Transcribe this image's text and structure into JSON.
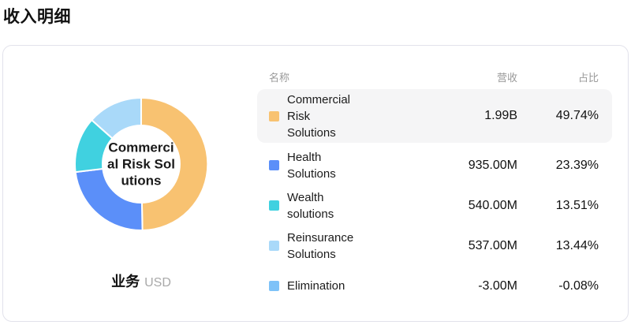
{
  "page_title": "收入明细",
  "chart_data": {
    "type": "pie",
    "subtype": "donut",
    "title": "收入明细",
    "dimension_label": "业务",
    "unit": "USD",
    "center_label": "Commerci\nal Risk Sol\nutions",
    "center_label_full": "Commercial Risk Solutions",
    "inner_radius_px": 49,
    "outer_radius_px": 84,
    "start_angle_deg": 0,
    "direction": "clockwise",
    "series": [
      {
        "name": "Commercial Risk Solutions",
        "value": 1990000000,
        "value_label": "1.99B",
        "percent": 49.74,
        "color": "#F8C271"
      },
      {
        "name": "Health Solutions",
        "value": 935000000,
        "value_label": "935.00M",
        "percent": 23.39,
        "color": "#5B8FF9"
      },
      {
        "name": "Wealth solutions",
        "value": 540000000,
        "value_label": "540.00M",
        "percent": 13.51,
        "color": "#40D1E0"
      },
      {
        "name": "Reinsurance Solutions",
        "value": 537000000,
        "value_label": "537.00M",
        "percent": 13.44,
        "color": "#A9D9F9"
      },
      {
        "name": "Elimination",
        "value": -3000000,
        "value_label": "-3.00M",
        "percent": -0.08,
        "color": "#7EC2F8"
      }
    ]
  },
  "chart_footer": {
    "label": "业务",
    "unit": "USD"
  },
  "table": {
    "headers": {
      "name": "名称",
      "revenue": "营收",
      "share": "占比"
    },
    "rows": [
      {
        "name": "Commercial Risk Solutions",
        "revenue": "1.99B",
        "share": "49.74%",
        "color": "#F8C271",
        "highlighted": true
      },
      {
        "name": "Health Solutions",
        "revenue": "935.00M",
        "share": "23.39%",
        "color": "#5B8FF9",
        "highlighted": false
      },
      {
        "name": "Wealth solutions",
        "revenue": "540.00M",
        "share": "13.51%",
        "color": "#40D1E0",
        "highlighted": false
      },
      {
        "name": "Reinsurance Solutions",
        "revenue": "537.00M",
        "share": "13.44%",
        "color": "#A9D9F9",
        "highlighted": false
      },
      {
        "name": "Elimination",
        "revenue": "-3.00M",
        "share": "-0.08%",
        "color": "#7EC2F8",
        "highlighted": false
      }
    ]
  }
}
